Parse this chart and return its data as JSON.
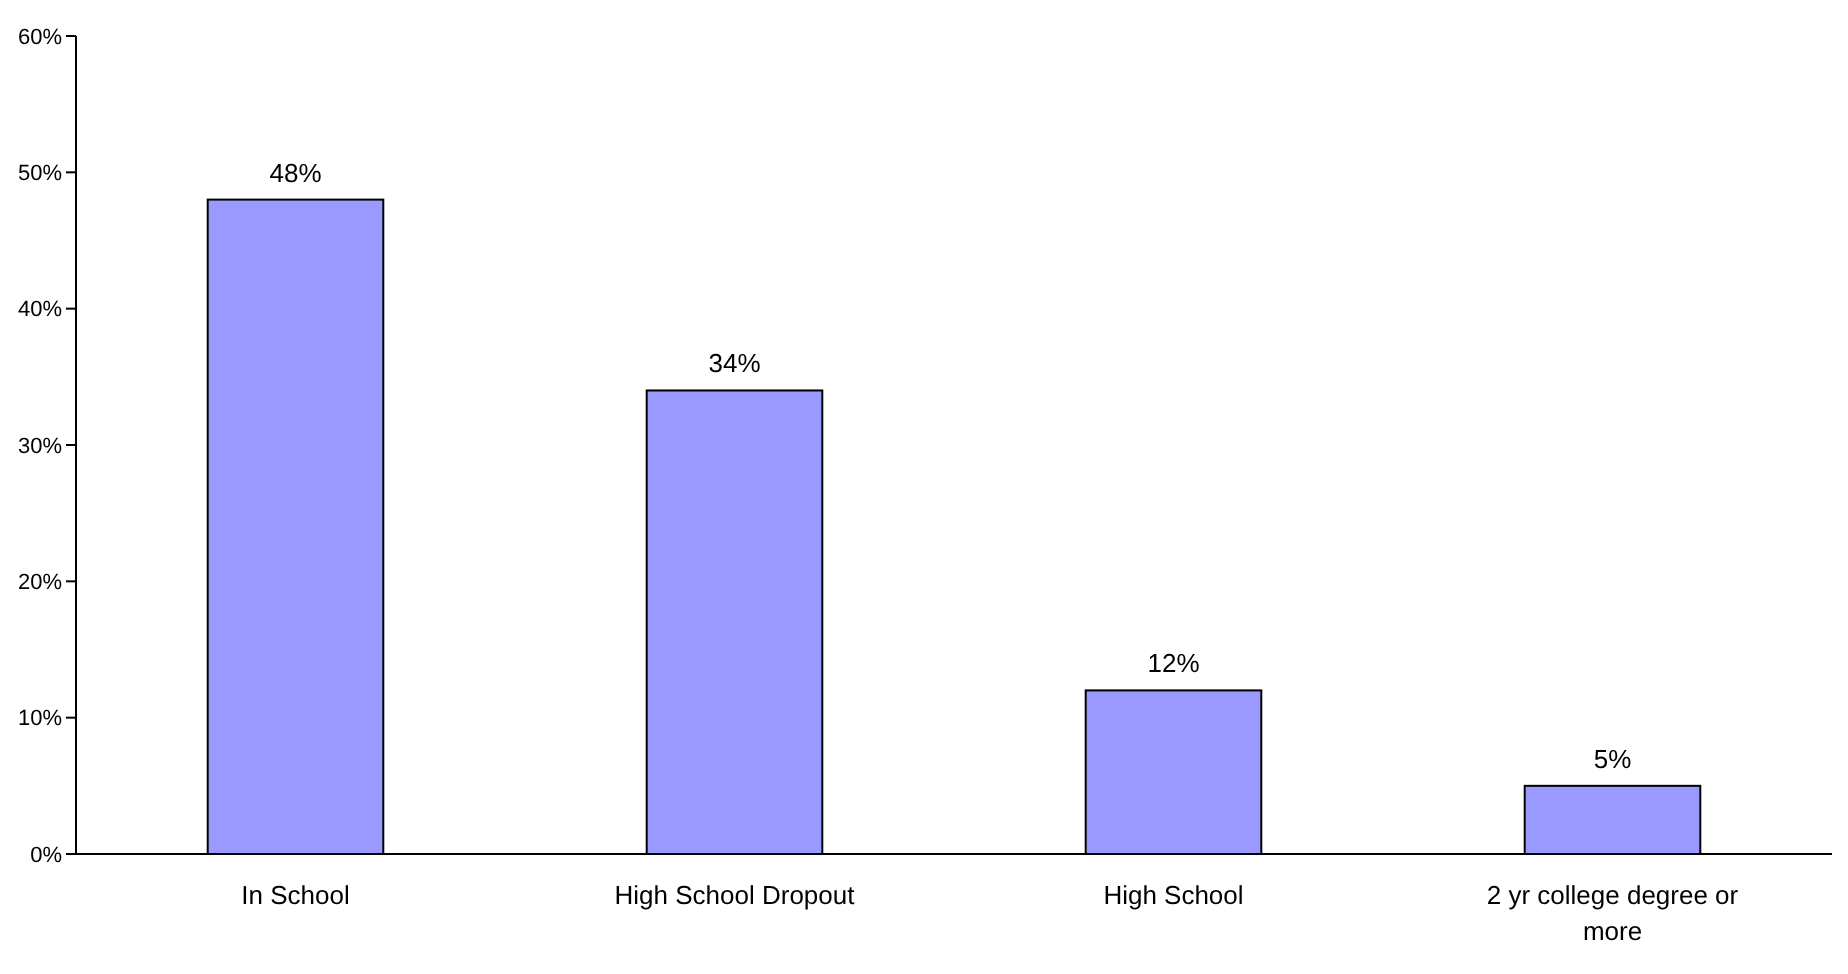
{
  "chart_data": {
    "type": "bar",
    "categories": [
      "In School",
      "High School Dropout",
      "High School",
      "2 yr college degree or more"
    ],
    "values": [
      48,
      34,
      12,
      5
    ],
    "value_labels": [
      "48%",
      "34%",
      "12%",
      "5%"
    ],
    "color": "#9999ff",
    "ylim": [
      0,
      60
    ],
    "yticks": [
      {
        "value": 0,
        "label": "0%"
      },
      {
        "value": 10,
        "label": "10%"
      },
      {
        "value": 20,
        "label": "20%"
      },
      {
        "value": 30,
        "label": "30%"
      },
      {
        "value": 40,
        "label": "40%"
      },
      {
        "value": 50,
        "label": "50%"
      },
      {
        "value": 60,
        "label": "60%"
      }
    ],
    "grid": false
  }
}
